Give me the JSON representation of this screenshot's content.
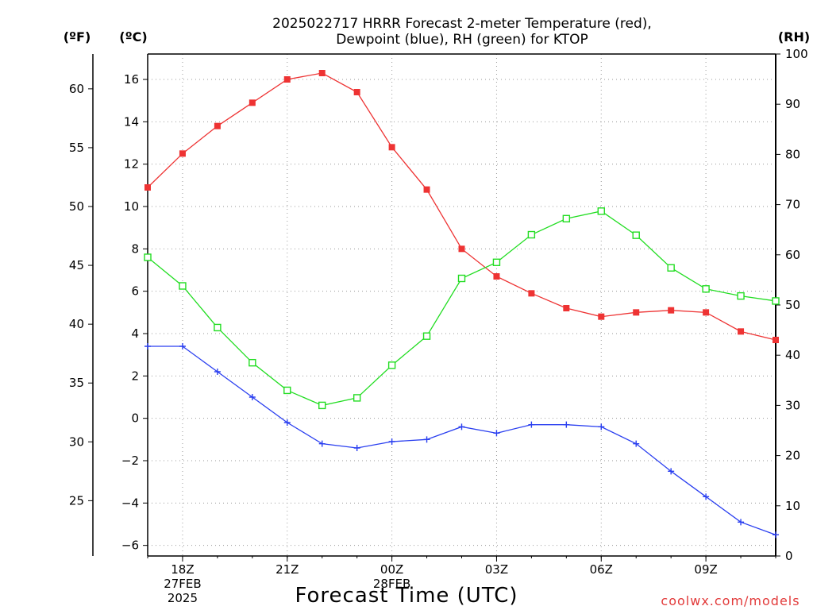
{
  "chart_data": {
    "type": "line",
    "title_lines": [
      "2025022717 HRRR Forecast 2-meter Temperature (red),",
      "Dewpoint (blue), RH (green) for KTOP"
    ],
    "xlabel": "Forecast Time (UTC)",
    "credit": "coolwx.com/models",
    "units": {
      "fahrenheit": "(ºF)",
      "celsius": "(ºC)",
      "rh": "(RH)"
    },
    "x": [
      17,
      18,
      19,
      20,
      21,
      22,
      23,
      24,
      25,
      26,
      27,
      28,
      29,
      30,
      31,
      32,
      33,
      34,
      35
    ],
    "xlim": [
      17,
      35
    ],
    "x_ticks": [
      {
        "x": 18,
        "lines": [
          "18Z",
          "27FEB",
          "2025"
        ]
      },
      {
        "x": 21,
        "lines": [
          "21Z"
        ]
      },
      {
        "x": 24,
        "lines": [
          "00Z",
          "28FEB"
        ]
      },
      {
        "x": 27,
        "lines": [
          "03Z"
        ]
      },
      {
        "x": 30,
        "lines": [
          "06Z"
        ]
      },
      {
        "x": 33,
        "lines": [
          "09Z"
        ]
      }
    ],
    "celsius_axis": {
      "ylim": [
        -6.5,
        17.2
      ],
      "ticks": [
        "16",
        "14",
        "12",
        "10",
        "8",
        "6",
        "4",
        "2",
        "0",
        "−2",
        "−4",
        "−6"
      ],
      "tick_values": [
        16,
        14,
        12,
        10,
        8,
        6,
        4,
        2,
        0,
        -2,
        -4,
        -6
      ]
    },
    "fahrenheit_axis": {
      "ticks": [
        "60",
        "55",
        "50",
        "45",
        "40",
        "35",
        "30",
        "25"
      ],
      "tick_values": [
        60,
        55,
        50,
        45,
        40,
        35,
        30,
        25
      ]
    },
    "rh_axis": {
      "ylim": [
        0,
        100
      ],
      "ticks": [
        "100",
        "90",
        "80",
        "70",
        "60",
        "50",
        "40",
        "30",
        "20",
        "10",
        "0"
      ],
      "tick_values": [
        100,
        90,
        80,
        70,
        60,
        50,
        40,
        30,
        20,
        10,
        0
      ]
    },
    "grid": true,
    "series": [
      {
        "name": "Temperature",
        "axis": "celsius",
        "color": "#ee3333",
        "marker": "filled-square",
        "values": [
          10.9,
          12.5,
          13.8,
          14.9,
          16.0,
          16.3,
          15.4,
          12.8,
          10.8,
          8.0,
          6.7,
          5.9,
          5.2,
          4.8,
          5.0,
          5.1,
          5.0,
          4.1,
          3.7
        ]
      },
      {
        "name": "Dewpoint",
        "axis": "celsius",
        "color": "#2a3ff0",
        "marker": "plus",
        "values": [
          3.4,
          3.4,
          2.2,
          1.0,
          -0.2,
          -1.2,
          -1.4,
          -1.1,
          -1.0,
          -0.4,
          -0.7,
          -0.3,
          -0.3,
          -0.4,
          -1.2,
          -2.5,
          -3.7,
          -4.9,
          -5.5
        ]
      },
      {
        "name": "RH",
        "axis": "rh",
        "color": "#22dd22",
        "marker": "open-square",
        "values": [
          59.5,
          53.8,
          45.5,
          38.5,
          33.0,
          30.0,
          31.5,
          38.0,
          43.8,
          55.3,
          58.5,
          64.0,
          67.2,
          68.7,
          63.9,
          57.4,
          53.2,
          51.8,
          50.8
        ]
      }
    ]
  }
}
